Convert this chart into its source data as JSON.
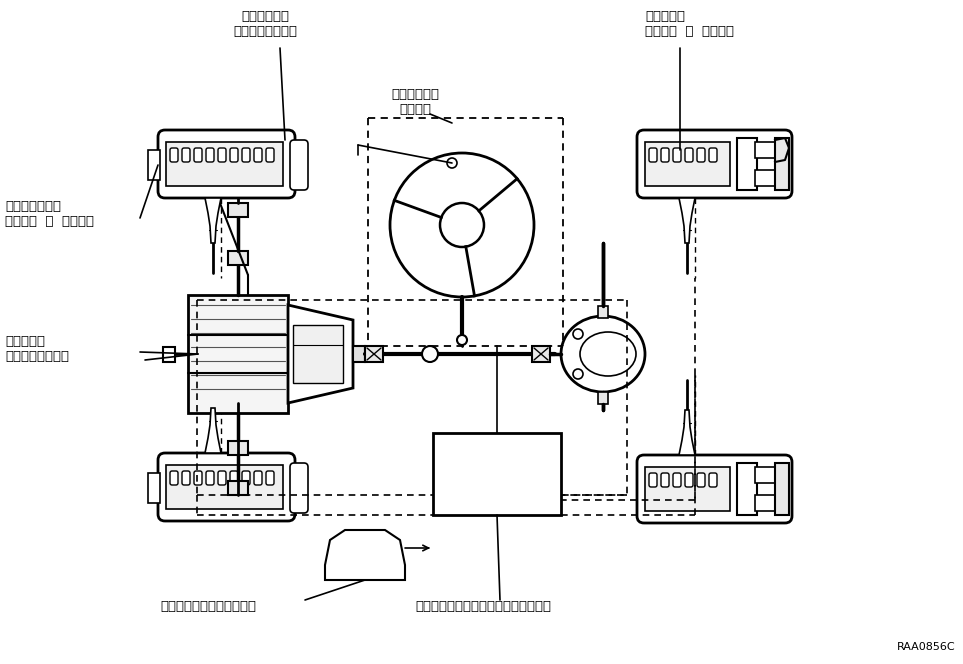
{
  "bg_color": "#ffffff",
  "line_color": "#000000",
  "label_color": "#000000",
  "watermark": "RAA0856C",
  "labels": {
    "neutral_switch": "ニュートラル\nスタートスイッチ",
    "rear_wheel_sensor": "リヤ車輪速\nセンサー  ＆  ローター",
    "steering_sensor": "ステアリング\nセンサー",
    "front_wheel_sensor": "フロント車輪速\nセンサー  ＆  ローター",
    "throttle_sensor": "スロットル\nポジションセンサ",
    "combination_meter": "コンビネーションメーター",
    "skid_computer": "スキッドコントロールコンピューター"
  },
  "figsize": [
    9.63,
    6.64
  ],
  "dpi": 100
}
